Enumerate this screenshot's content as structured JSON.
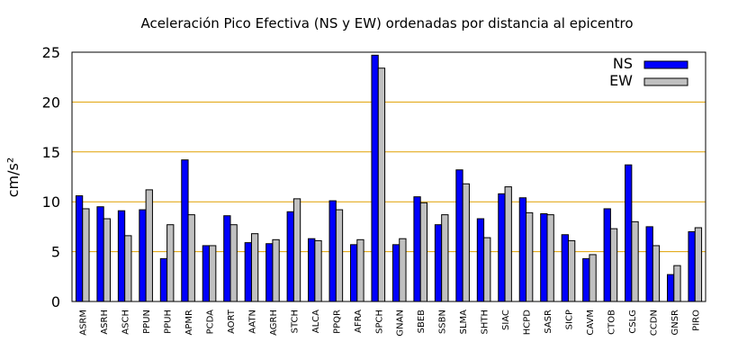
{
  "chart_data": {
    "type": "bar",
    "title": "Aceleración Pico Efectiva (NS y EW) ordenadas por distancia al epicentro",
    "ylabel": "cm/s²",
    "xlabel": "",
    "ylim": [
      0,
      25
    ],
    "yticks": [
      0,
      5,
      10,
      15,
      20,
      25
    ],
    "grid": true,
    "legend_position": "top-right",
    "categories": [
      "ASRM",
      "ASRH",
      "ASCH",
      "PPUN",
      "PPUH",
      "APMR",
      "PCDA",
      "AORT",
      "AATN",
      "AGRH",
      "STCH",
      "ALCA",
      "PPQR",
      "AFRA",
      "SPCH",
      "GNAN",
      "SBEB",
      "SSBN",
      "SLMA",
      "SHTH",
      "SIAC",
      "HCPD",
      "SASR",
      "SICP",
      "CAVM",
      "CTOB",
      "CSLG",
      "CCDN",
      "GNSR",
      "PIRO"
    ],
    "series": [
      {
        "name": "NS",
        "color": "#0000ff",
        "values": [
          10.6,
          9.5,
          9.1,
          9.2,
          4.3,
          14.2,
          5.6,
          8.6,
          5.9,
          5.8,
          9.0,
          6.3,
          10.1,
          5.7,
          24.7,
          5.7,
          10.5,
          7.7,
          13.2,
          8.3,
          10.8,
          10.4,
          8.8,
          6.7,
          4.3,
          9.3,
          13.7,
          7.5,
          2.7,
          7.0
        ]
      },
      {
        "name": "EW",
        "color": "#c0c0c0",
        "values": [
          9.3,
          8.3,
          6.6,
          11.2,
          7.7,
          8.7,
          5.6,
          7.7,
          6.8,
          6.2,
          10.3,
          6.1,
          9.2,
          6.2,
          23.4,
          6.3,
          9.9,
          8.7,
          11.8,
          6.4,
          11.5,
          8.9,
          8.7,
          6.1,
          4.7,
          7.3,
          8.0,
          5.6,
          3.6,
          7.4
        ]
      }
    ],
    "gridline_color": "#e0a000"
  }
}
